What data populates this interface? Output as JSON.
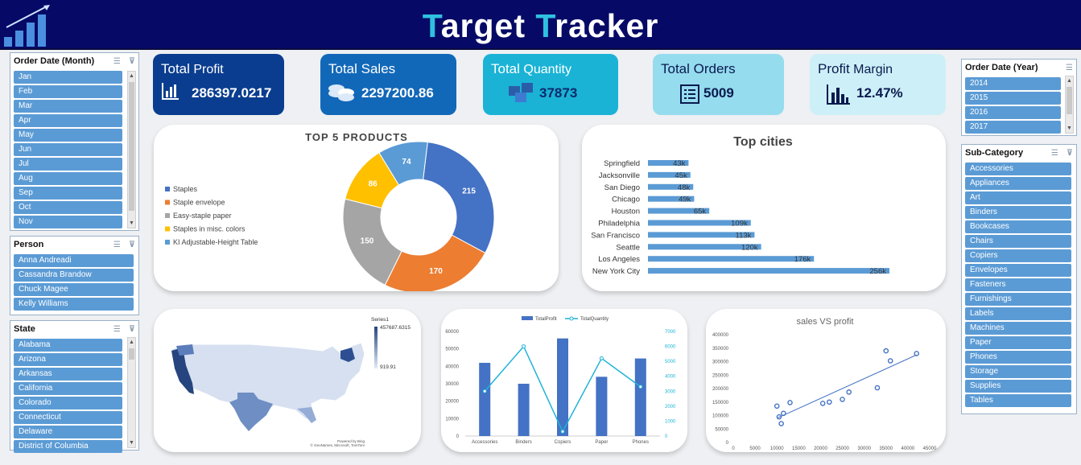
{
  "header": {
    "title_part1": "T",
    "title_part2": "arget ",
    "title_part3": "T",
    "title_part4": "racker"
  },
  "kpis": [
    {
      "label": "Total",
      "label2": "Profit",
      "value": "286397.0217",
      "icon": "bar-chart-icon"
    },
    {
      "label": "Total Sales",
      "label2": "",
      "value": "2297200.86",
      "icon": "coins-icon"
    },
    {
      "label": "Total",
      "label2": "Quantity",
      "value": "37873",
      "icon": "boxes-icon"
    },
    {
      "label": "Total Orders",
      "label2": "",
      "value": "5009",
      "icon": "list-icon"
    },
    {
      "label": "Profit",
      "label2": "Margin",
      "value": "12.47%",
      "icon": "bar-chart-icon"
    }
  ],
  "colors": {
    "header": "#060a66",
    "accent": "#2fc0e0",
    "slicer_item": "#5b9bd5"
  },
  "slicers": {
    "month": {
      "title": "Order Date (Month)",
      "items": [
        "Jan",
        "Feb",
        "Mar",
        "Apr",
        "May",
        "Jun",
        "Jul",
        "Aug",
        "Sep",
        "Oct",
        "Nov"
      ]
    },
    "person": {
      "title": "Person",
      "items": [
        "Anna Andreadi",
        "Cassandra Brandow",
        "Chuck Magee",
        "Kelly Williams"
      ]
    },
    "state": {
      "title": "State",
      "items": [
        "Alabama",
        "Arizona",
        "Arkansas",
        "California",
        "Colorado",
        "Connecticut",
        "Delaware",
        "District of Columbia"
      ]
    },
    "year": {
      "title": "Order Date (Year)",
      "items": [
        "2014",
        "2015",
        "2016",
        "2017"
      ]
    },
    "subcat": {
      "title": "Sub-Category",
      "items": [
        "Accessories",
        "Appliances",
        "Art",
        "Binders",
        "Bookcases",
        "Chairs",
        "Copiers",
        "Envelopes",
        "Fasteners",
        "Furnishings",
        "Labels",
        "Machines",
        "Paper",
        "Phones",
        "Storage",
        "Supplies",
        "Tables"
      ]
    }
  },
  "chart_data": [
    {
      "type": "pie",
      "title": "TOP 5 PRODUCTS",
      "categories": [
        "Staples",
        "Staple envelope",
        "Easy-staple paper",
        "Staples in misc. colors",
        "KI Adjustable-Height Table"
      ],
      "values": [
        215,
        170,
        150,
        86,
        74
      ],
      "colors": [
        "#4472c4",
        "#ed7d31",
        "#a5a5a5",
        "#ffc000",
        "#5b9bd5"
      ]
    },
    {
      "type": "bar",
      "title": "Top cities",
      "categories": [
        "Springfield",
        "Jacksonville",
        "San Diego",
        "Chicago",
        "Houston",
        "Philadelphia",
        "San Francisco",
        "Seattle",
        "Los Angeles",
        "New York City"
      ],
      "labels": [
        "43k",
        "45k",
        "48k",
        "49k",
        "65k",
        "109k",
        "113k",
        "120k",
        "176k",
        "256k"
      ],
      "values": [
        43,
        45,
        48,
        49,
        65,
        109,
        113,
        120,
        176,
        256
      ]
    },
    {
      "type": "heatmap",
      "title": "",
      "legend_title": "Series1",
      "max_label": "457687.6315",
      "min_label": "919.91",
      "credit1": "Powered by Bing",
      "credit2": "© GeoNames, Microsoft, TomTom"
    },
    {
      "type": "bar",
      "title": "",
      "categories": [
        "Accessories",
        "Binders",
        "Copiers",
        "Paper",
        "Phones"
      ],
      "series": [
        {
          "name": "TotalProfit",
          "values": [
            42000,
            30000,
            56000,
            34000,
            44500
          ]
        },
        {
          "name": "TotalQuantity",
          "values": [
            3000,
            6000,
            300,
            5200,
            3300
          ]
        }
      ],
      "y_ticks": [
        "60000",
        "50000",
        "40000",
        "30000",
        "20000",
        "10000",
        "0"
      ],
      "y2_ticks": [
        "7000",
        "6000",
        "5000",
        "4000",
        "3000",
        "2000",
        "1000",
        "0"
      ],
      "ylim": [
        0,
        60000
      ],
      "y2lim": [
        0,
        7000
      ]
    },
    {
      "type": "scatter",
      "title": "sales VS profit",
      "points": [
        [
          10000,
          135000
        ],
        [
          10500,
          95000
        ],
        [
          11000,
          70000
        ],
        [
          11500,
          108000
        ],
        [
          13000,
          148000
        ],
        [
          20500,
          145000
        ],
        [
          22000,
          150000
        ],
        [
          25000,
          160000
        ],
        [
          26500,
          187000
        ],
        [
          33000,
          203000
        ],
        [
          35000,
          340000
        ],
        [
          36000,
          303000
        ],
        [
          42000,
          330000
        ]
      ],
      "xlim": [
        0,
        45000
      ],
      "ylim": [
        0,
        400000
      ],
      "x_ticks": [
        "0",
        "5000",
        "10000",
        "15000",
        "20000",
        "25000",
        "30000",
        "35000",
        "40000",
        "45000"
      ],
      "y_ticks": [
        "400000",
        "350000",
        "300000",
        "250000",
        "200000",
        "150000",
        "100000",
        "50000",
        "0"
      ]
    }
  ]
}
